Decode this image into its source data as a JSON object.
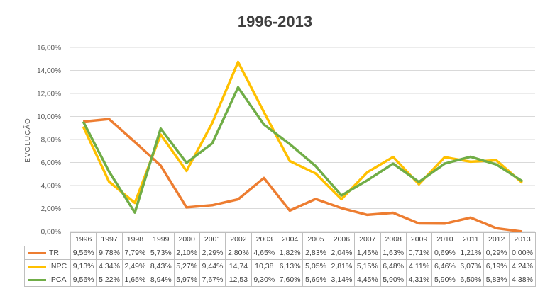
{
  "chart_data": {
    "type": "line",
    "title": "1996-2013",
    "xlabel": "",
    "ylabel": "EVOLUÇÃO",
    "ylim": [
      0,
      16
    ],
    "y_ticks": [
      "0,00%",
      "2,00%",
      "4,00%",
      "6,00%",
      "8,00%",
      "10,00%",
      "12,00%",
      "14,00%",
      "16,00%"
    ],
    "categories": [
      "1996",
      "1997",
      "1998",
      "1999",
      "2000",
      "2001",
      "2002",
      "2003",
      "2004",
      "2005",
      "2006",
      "2007",
      "2008",
      "2009",
      "2010",
      "2011",
      "2012",
      "2013"
    ],
    "grid": true,
    "legend": "data-table",
    "series": [
      {
        "name": "TR",
        "color": "#ed7d31",
        "values": [
          9.56,
          9.78,
          7.79,
          5.73,
          2.1,
          2.29,
          2.8,
          4.65,
          1.82,
          2.83,
          2.04,
          1.45,
          1.63,
          0.71,
          0.69,
          1.21,
          0.29,
          0.0
        ],
        "labels": [
          "9,56%",
          "9,78%",
          "7,79%",
          "5,73%",
          "2,10%",
          "2,29%",
          "2,80%",
          "4,65%",
          "1,82%",
          "2,83%",
          "2,04%",
          "1,45%",
          "1,63%",
          "0,71%",
          "0,69%",
          "1,21%",
          "0,29%",
          "0,00%"
        ]
      },
      {
        "name": "INPC",
        "color": "#ffc000",
        "values": [
          9.13,
          4.34,
          2.49,
          8.43,
          5.27,
          9.44,
          14.74,
          10.38,
          6.13,
          5.05,
          2.81,
          5.15,
          6.48,
          4.11,
          6.46,
          6.07,
          6.19,
          4.24
        ],
        "labels": [
          "9,13%",
          "4,34%",
          "2,49%",
          "8,43%",
          "5,27%",
          "9,44%",
          "14,74",
          "10,38",
          "6,13%",
          "5,05%",
          "2,81%",
          "5,15%",
          "6,48%",
          "4,11%",
          "6,46%",
          "6,07%",
          "6,19%",
          "4,24%"
        ]
      },
      {
        "name": "IPCA",
        "color": "#70ad47",
        "values": [
          9.56,
          5.22,
          1.65,
          8.94,
          5.97,
          7.67,
          12.53,
          9.3,
          7.6,
          5.69,
          3.14,
          4.45,
          5.9,
          4.31,
          5.9,
          6.5,
          5.83,
          4.38
        ],
        "labels": [
          "9,56%",
          "5,22%",
          "1,65%",
          "8,94%",
          "5,97%",
          "7,67%",
          "12,53",
          "9,30%",
          "7,60%",
          "5,69%",
          "3,14%",
          "4,45%",
          "5,90%",
          "4,31%",
          "5,90%",
          "6,50%",
          "5,83%",
          "4,38%"
        ]
      }
    ]
  }
}
